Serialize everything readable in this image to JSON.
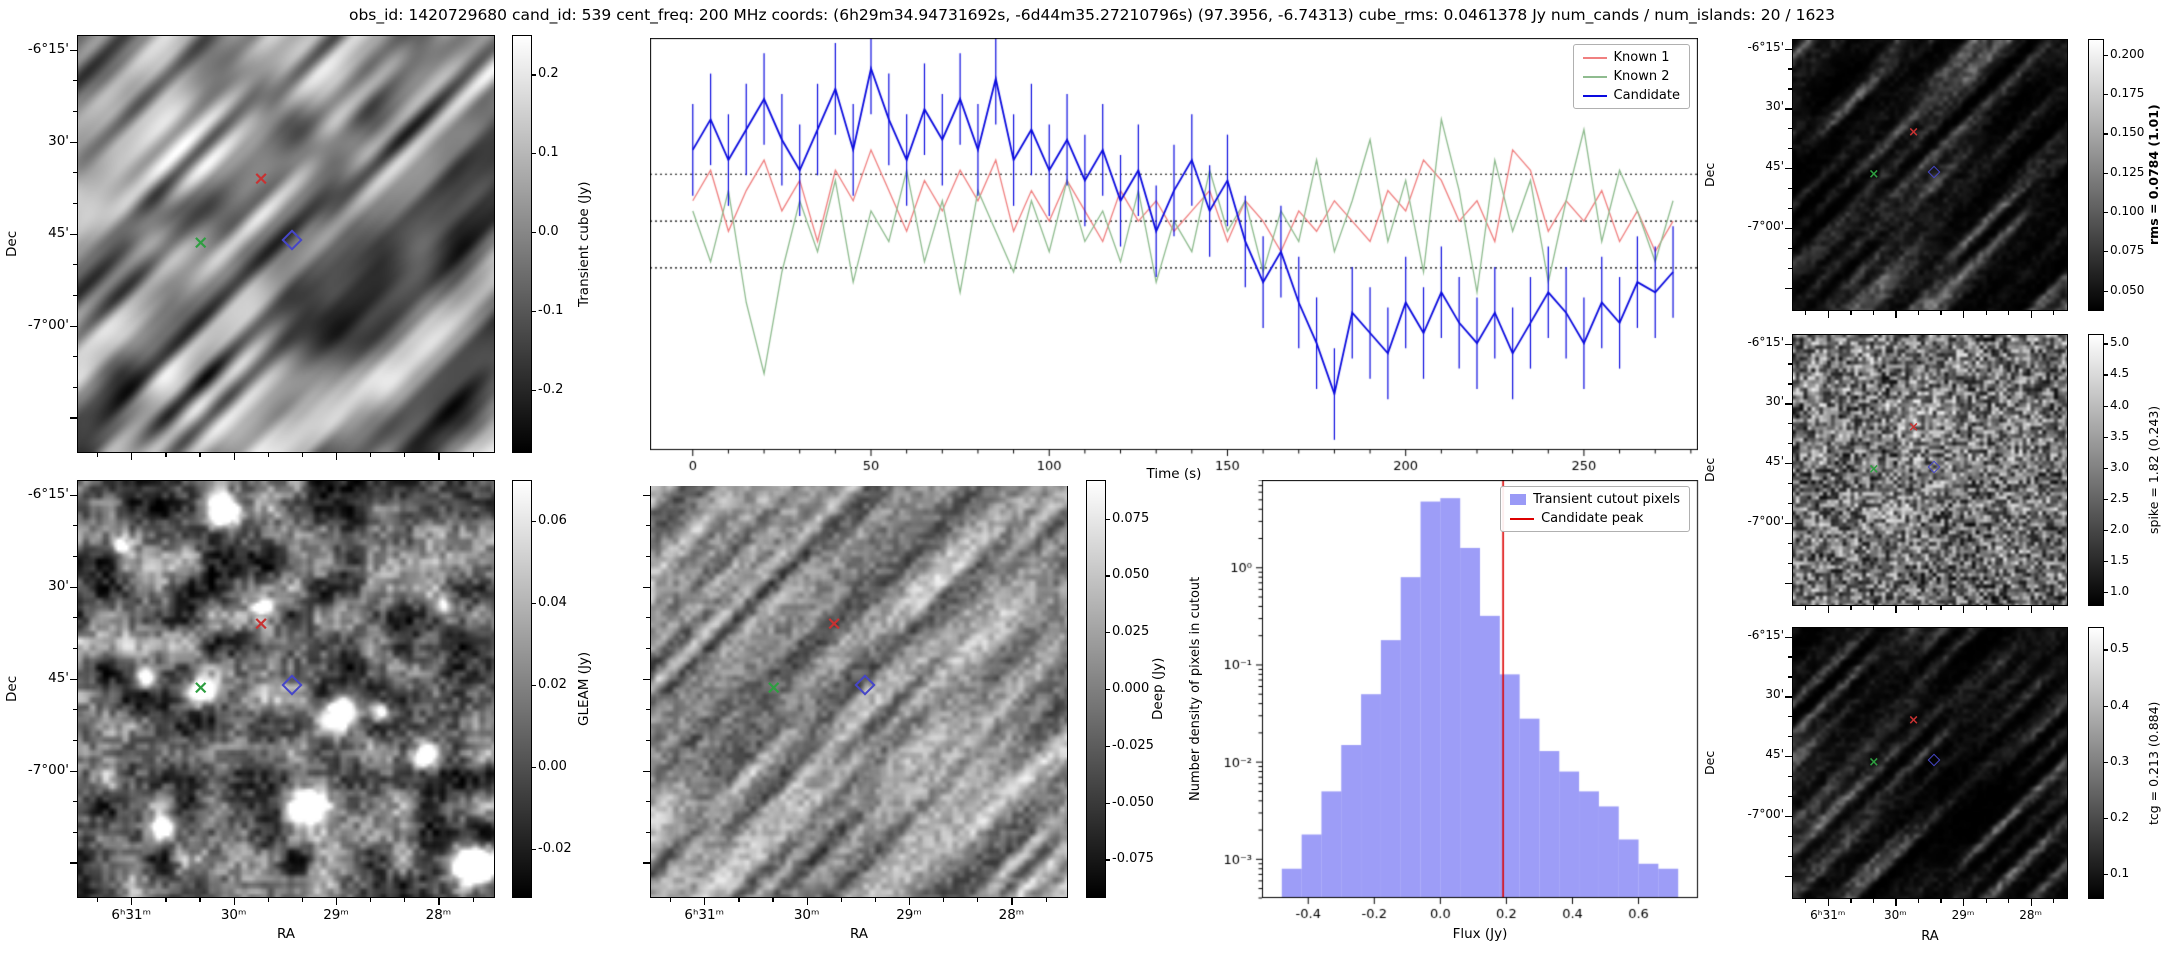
{
  "title": "obs_id: 1420729680 cand_id: 539 cent_freq: 200 MHz coords: (6h29m34.94731692s, -6d44m35.27210796s) (97.3956, -6.74313) cube_rms: 0.0461378 Jy num_cands / num_islands: 20 / 1623",
  "axes": {
    "ra": "RA",
    "dec": "Dec",
    "time": "Time (s)",
    "flux": "Flux (Jy)",
    "hist_y": "Number density of pixels in cutout"
  },
  "ticks": {
    "dec": [
      "-6°15'",
      "30'",
      "45'",
      "-7°00'"
    ],
    "ra": [
      "6ʰ31ᵐ",
      "30ᵐ",
      "29ᵐ",
      "28ᵐ"
    ],
    "time": [
      "0",
      "50",
      "100",
      "150",
      "200",
      "250"
    ],
    "flux": [
      "-0.4",
      "-0.2",
      "0.0",
      "0.2",
      "0.4",
      "0.6"
    ],
    "hist_y": [
      "10⁰",
      "10⁻¹",
      "10⁻²",
      "10⁻³"
    ]
  },
  "colorbars": {
    "transient": {
      "label": "Transient cube (Jy)",
      "ticks": [
        "0.2",
        "0.1",
        "0.0",
        "-0.1",
        "-0.2"
      ]
    },
    "gleam": {
      "label": "GLEAM (Jy)",
      "ticks": [
        "0.06",
        "0.04",
        "0.02",
        "0.00",
        "-0.02"
      ]
    },
    "deep": {
      "label": "Deep (Jy)",
      "ticks": [
        "0.075",
        "0.050",
        "0.025",
        "0.000",
        "-0.025",
        "-0.050",
        "-0.075"
      ]
    },
    "rms": {
      "label": "rms = 0.0784 (1.01)",
      "ticks": [
        "0.200",
        "0.175",
        "0.150",
        "0.125",
        "0.100",
        "0.075",
        "0.050"
      ]
    },
    "spike": {
      "label": "spike = 1.82 (0.243)",
      "ticks": [
        "5.0",
        "4.5",
        "4.0",
        "3.5",
        "3.0",
        "2.5",
        "2.0",
        "1.5",
        "1.0"
      ]
    },
    "tcg": {
      "label": "tcg = 0.213 (0.884)",
      "ticks": [
        "0.5",
        "0.4",
        "0.3",
        "0.2",
        "0.1"
      ]
    }
  },
  "legend": {
    "lightcurve": [
      "Known 1",
      "Known 2",
      "Candidate"
    ],
    "histogram": [
      "Transient cutout pixels",
      "Candidate peak"
    ]
  },
  "colors": {
    "known1": "#f08080",
    "known2": "#8fbc8f",
    "candidate": "#0a0adf",
    "hist_fill": "#6f6ff2",
    "peak_line": "#dd0000",
    "marker_red": "#c83232",
    "marker_green": "#2e9e40",
    "marker_blue": "#4646c8"
  },
  "chart_data": [
    {
      "type": "line",
      "name": "lightcurve",
      "xlabel": "Time (s)",
      "ylabel": "Transient cube (Jy)",
      "xlim": [
        -12,
        282
      ],
      "ylim": [
        -0.225,
        0.18
      ],
      "hlines": [
        0.046,
        0.0,
        -0.046
      ],
      "x": [
        0,
        5,
        10,
        15,
        20,
        25,
        30,
        35,
        40,
        45,
        50,
        55,
        60,
        65,
        70,
        75,
        80,
        85,
        90,
        95,
        100,
        105,
        110,
        115,
        120,
        125,
        130,
        135,
        140,
        145,
        150,
        155,
        160,
        165,
        170,
        175,
        180,
        185,
        190,
        195,
        200,
        205,
        210,
        215,
        220,
        225,
        230,
        235,
        240,
        245,
        250,
        255,
        260,
        265,
        270,
        275
      ],
      "series": [
        {
          "name": "Known 1",
          "color": "#f08080",
          "values": [
            0.02,
            0.05,
            -0.01,
            0.03,
            0.06,
            0.01,
            0.04,
            -0.02,
            0.05,
            0.02,
            0.07,
            0.03,
            -0.01,
            0.04,
            0.01,
            0.05,
            0.02,
            0.06,
            -0.01,
            0.03,
            0.0,
            0.04,
            0.01,
            -0.02,
            0.03,
            0.0,
            0.02,
            -0.01,
            0.01,
            0.03,
            -0.02,
            0.02,
            0.0,
            -0.03,
            0.01,
            -0.01,
            0.02,
            0.0,
            -0.02,
            0.03,
            0.01,
            0.06,
            0.04,
            0.0,
            0.02,
            -0.02,
            0.07,
            0.05,
            -0.01,
            0.02,
            0.0,
            0.03,
            -0.02,
            0.01,
            -0.03,
            0.0
          ]
        },
        {
          "name": "Known 2",
          "color": "#8fbc8f",
          "values": [
            0.01,
            -0.04,
            0.03,
            -0.08,
            -0.15,
            -0.05,
            0.02,
            -0.03,
            0.04,
            -0.06,
            0.01,
            -0.02,
            0.05,
            -0.04,
            0.02,
            -0.07,
            0.03,
            -0.01,
            -0.05,
            0.02,
            -0.03,
            0.04,
            -0.02,
            0.01,
            -0.04,
            0.03,
            -0.06,
            0.0,
            -0.03,
            0.05,
            -0.01,
            0.02,
            -0.05,
            0.01,
            -0.02,
            0.06,
            -0.03,
            0.02,
            0.08,
            -0.02,
            0.04,
            -0.05,
            0.1,
            0.03,
            -0.07,
            0.06,
            -0.01,
            0.04,
            -0.06,
            0.02,
            0.09,
            -0.02,
            0.05,
            0.01,
            -0.04,
            0.02
          ]
        },
        {
          "name": "Candidate",
          "color": "#0a0adf",
          "errorbar": 0.045,
          "values": [
            0.07,
            0.1,
            0.06,
            0.09,
            0.12,
            0.08,
            0.05,
            0.09,
            0.13,
            0.07,
            0.15,
            0.1,
            0.06,
            0.11,
            0.08,
            0.12,
            0.07,
            0.14,
            0.06,
            0.09,
            0.05,
            0.08,
            0.04,
            0.07,
            0.02,
            0.05,
            -0.01,
            0.03,
            0.06,
            0.01,
            0.04,
            -0.02,
            -0.06,
            -0.03,
            -0.08,
            -0.12,
            -0.17,
            -0.09,
            -0.11,
            -0.13,
            -0.08,
            -0.11,
            -0.07,
            -0.1,
            -0.12,
            -0.09,
            -0.13,
            -0.1,
            -0.07,
            -0.09,
            -0.12,
            -0.08,
            -0.1,
            -0.06,
            -0.07,
            -0.05
          ]
        }
      ]
    },
    {
      "type": "bar",
      "name": "pixel_histogram",
      "xlabel": "Flux (Jy)",
      "ylabel": "Number density of pixels in cutout",
      "yscale": "log",
      "xlim": [
        -0.54,
        0.78
      ],
      "ylim": [
        0.0004,
        8
      ],
      "bin_edges": [
        -0.48,
        -0.42,
        -0.36,
        -0.3,
        -0.24,
        -0.18,
        -0.12,
        -0.06,
        0.0,
        0.06,
        0.12,
        0.18,
        0.24,
        0.3,
        0.36,
        0.42,
        0.48,
        0.54,
        0.6,
        0.66,
        0.72
      ],
      "densities": [
        0.0008,
        0.0018,
        0.005,
        0.015,
        0.05,
        0.18,
        0.8,
        4.8,
        5.2,
        1.6,
        0.32,
        0.08,
        0.028,
        0.013,
        0.008,
        0.005,
        0.0035,
        0.0016,
        0.0009,
        0.0008
      ],
      "vline": {
        "x": 0.19,
        "label": "Candidate peak",
        "color": "#dd0000"
      },
      "bar_label": "Transient cutout pixels",
      "bar_color": "#6f6ff2"
    },
    {
      "type": "heatmap",
      "name": "image_cutouts",
      "x_axis": {
        "label": "RA",
        "ticks": [
          "6ʰ31ᵐ",
          "30ᵐ",
          "29ᵐ",
          "28ᵐ"
        ]
      },
      "y_axis": {
        "label": "Dec",
        "ticks": [
          "-6°15'",
          "30'",
          "45'",
          "-7°00'"
        ]
      },
      "panels": [
        {
          "name": "Transient cube",
          "colorbar_label": "Transient cube (Jy)",
          "vmin": -0.28,
          "vmax": 0.25
        },
        {
          "name": "GLEAM",
          "colorbar_label": "GLEAM (Jy)",
          "vmin": -0.032,
          "vmax": 0.07
        },
        {
          "name": "Deep",
          "colorbar_label": "Deep (Jy)",
          "vmin": -0.092,
          "vmax": 0.092
        },
        {
          "name": "rms",
          "colorbar_label": "rms = 0.0784 (1.01)",
          "vmin": 0.037,
          "vmax": 0.21
        },
        {
          "name": "spike",
          "colorbar_label": "spike = 1.82 (0.243)",
          "vmin": 0.78,
          "vmax": 5.15
        },
        {
          "name": "tcg",
          "colorbar_label": "tcg = 0.213 (0.884)",
          "vmin": 0.055,
          "vmax": 0.54
        }
      ],
      "markers": [
        {
          "name": "known1",
          "type": "x",
          "color": "#c83232",
          "frac": [
            0.44,
            0.345
          ]
        },
        {
          "name": "known2",
          "type": "x",
          "color": "#2e9e40",
          "frac": [
            0.295,
            0.5
          ]
        },
        {
          "name": "candidate",
          "type": "diamond",
          "color": "#4646c8",
          "frac": [
            0.515,
            0.49
          ]
        }
      ]
    }
  ]
}
